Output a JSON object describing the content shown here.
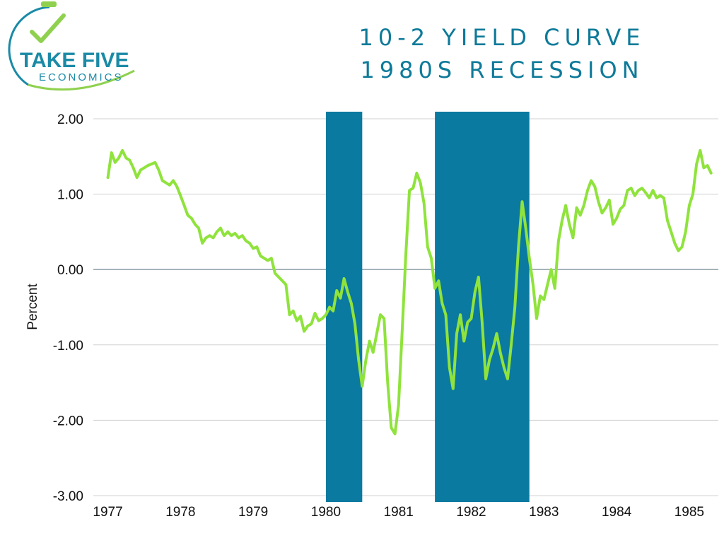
{
  "logo": {
    "line1": "TAKE FIVE",
    "line2": "ECONOMICS",
    "colors": {
      "teal": "#1a8aa6",
      "green": "#8fd14f"
    }
  },
  "title": {
    "line1": "10-2 YIELD CURVE",
    "line2": "1980S RECESSION"
  },
  "chart_data": {
    "type": "line",
    "title": "10-2 YIELD CURVE 1980S RECESSION",
    "ylabel": "Percent",
    "xlabel": "",
    "ylim": [
      -3.0,
      2.0
    ],
    "xlim": [
      1976.8,
      1985.4
    ],
    "y_ticks": [
      {
        "value": 2,
        "label": "2.00"
      },
      {
        "value": 1,
        "label": "1.00"
      },
      {
        "value": 0,
        "label": "0.00"
      },
      {
        "value": -1,
        "label": "-1.00"
      },
      {
        "value": -2,
        "label": "-2.00"
      },
      {
        "value": -3,
        "label": "-3.00"
      }
    ],
    "x_ticks": [
      {
        "value": 1977,
        "label": "1977"
      },
      {
        "value": 1978,
        "label": "1978"
      },
      {
        "value": 1979,
        "label": "1979"
      },
      {
        "value": 1980,
        "label": "1980"
      },
      {
        "value": 1981,
        "label": "1981"
      },
      {
        "value": 1982,
        "label": "1982"
      },
      {
        "value": 1983,
        "label": "1983"
      },
      {
        "value": 1984,
        "label": "1984"
      },
      {
        "value": 1985,
        "label": "1985"
      }
    ],
    "grid": true,
    "line_color": "#8fe33c",
    "recession_color": "#0a7aa0",
    "recessions": [
      {
        "start": 1980.0,
        "end": 1980.5
      },
      {
        "start": 1981.5,
        "end": 1982.8
      }
    ],
    "series": [
      {
        "points": [
          [
            1977.0,
            1.22
          ],
          [
            1977.05,
            1.55
          ],
          [
            1977.1,
            1.42
          ],
          [
            1977.15,
            1.48
          ],
          [
            1977.2,
            1.58
          ],
          [
            1977.25,
            1.48
          ],
          [
            1977.3,
            1.45
          ],
          [
            1977.35,
            1.35
          ],
          [
            1977.4,
            1.22
          ],
          [
            1977.45,
            1.32
          ],
          [
            1977.5,
            1.35
          ],
          [
            1977.55,
            1.38
          ],
          [
            1977.6,
            1.4
          ],
          [
            1977.65,
            1.42
          ],
          [
            1977.7,
            1.32
          ],
          [
            1977.75,
            1.18
          ],
          [
            1977.8,
            1.15
          ],
          [
            1977.85,
            1.12
          ],
          [
            1977.9,
            1.18
          ],
          [
            1977.95,
            1.1
          ],
          [
            1978.0,
            0.98
          ],
          [
            1978.05,
            0.85
          ],
          [
            1978.1,
            0.72
          ],
          [
            1978.15,
            0.68
          ],
          [
            1978.2,
            0.6
          ],
          [
            1978.25,
            0.55
          ],
          [
            1978.3,
            0.35
          ],
          [
            1978.35,
            0.42
          ],
          [
            1978.4,
            0.45
          ],
          [
            1978.45,
            0.42
          ],
          [
            1978.5,
            0.5
          ],
          [
            1978.55,
            0.55
          ],
          [
            1978.6,
            0.45
          ],
          [
            1978.65,
            0.5
          ],
          [
            1978.7,
            0.45
          ],
          [
            1978.75,
            0.48
          ],
          [
            1978.8,
            0.42
          ],
          [
            1978.85,
            0.45
          ],
          [
            1978.9,
            0.38
          ],
          [
            1978.95,
            0.35
          ],
          [
            1979.0,
            0.28
          ],
          [
            1979.05,
            0.3
          ],
          [
            1979.1,
            0.18
          ],
          [
            1979.15,
            0.15
          ],
          [
            1979.2,
            0.12
          ],
          [
            1979.25,
            0.15
          ],
          [
            1979.3,
            -0.05
          ],
          [
            1979.35,
            -0.1
          ],
          [
            1979.4,
            -0.15
          ],
          [
            1979.45,
            -0.2
          ],
          [
            1979.5,
            -0.6
          ],
          [
            1979.55,
            -0.55
          ],
          [
            1979.6,
            -0.68
          ],
          [
            1979.65,
            -0.62
          ],
          [
            1979.7,
            -0.82
          ],
          [
            1979.75,
            -0.75
          ],
          [
            1979.8,
            -0.72
          ],
          [
            1979.85,
            -0.58
          ],
          [
            1979.9,
            -0.68
          ],
          [
            1979.95,
            -0.65
          ],
          [
            1980.0,
            -0.6
          ],
          [
            1980.05,
            -0.5
          ],
          [
            1980.1,
            -0.55
          ],
          [
            1980.15,
            -0.28
          ],
          [
            1980.2,
            -0.38
          ],
          [
            1980.25,
            -0.12
          ],
          [
            1980.3,
            -0.3
          ],
          [
            1980.35,
            -0.45
          ],
          [
            1980.4,
            -0.72
          ],
          [
            1980.45,
            -1.2
          ],
          [
            1980.5,
            -1.55
          ],
          [
            1980.55,
            -1.2
          ],
          [
            1980.6,
            -0.95
          ],
          [
            1980.65,
            -1.1
          ],
          [
            1980.7,
            -0.85
          ],
          [
            1980.75,
            -0.6
          ],
          [
            1980.8,
            -0.65
          ],
          [
            1980.85,
            -1.5
          ],
          [
            1980.9,
            -2.1
          ],
          [
            1980.95,
            -2.18
          ],
          [
            1981.0,
            -1.8
          ],
          [
            1981.05,
            -0.8
          ],
          [
            1981.1,
            0.2
          ],
          [
            1981.15,
            1.05
          ],
          [
            1981.2,
            1.08
          ],
          [
            1981.25,
            1.28
          ],
          [
            1981.3,
            1.15
          ],
          [
            1981.35,
            0.88
          ],
          [
            1981.4,
            0.3
          ],
          [
            1981.45,
            0.15
          ],
          [
            1981.5,
            -0.25
          ],
          [
            1981.55,
            -0.15
          ],
          [
            1981.6,
            -0.45
          ],
          [
            1981.65,
            -0.6
          ],
          [
            1981.7,
            -1.3
          ],
          [
            1981.75,
            -1.58
          ],
          [
            1981.8,
            -0.85
          ],
          [
            1981.85,
            -0.6
          ],
          [
            1981.9,
            -0.95
          ],
          [
            1981.95,
            -0.7
          ],
          [
            1982.0,
            -0.65
          ],
          [
            1982.05,
            -0.3
          ],
          [
            1982.1,
            -0.1
          ],
          [
            1982.15,
            -0.7
          ],
          [
            1982.2,
            -1.45
          ],
          [
            1982.25,
            -1.2
          ],
          [
            1982.3,
            -1.05
          ],
          [
            1982.35,
            -0.85
          ],
          [
            1982.4,
            -1.1
          ],
          [
            1982.45,
            -1.3
          ],
          [
            1982.5,
            -1.45
          ],
          [
            1982.55,
            -1.0
          ],
          [
            1982.6,
            -0.5
          ],
          [
            1982.65,
            0.3
          ],
          [
            1982.7,
            0.9
          ],
          [
            1982.75,
            0.55
          ],
          [
            1982.8,
            0.15
          ],
          [
            1982.85,
            -0.2
          ],
          [
            1982.9,
            -0.65
          ],
          [
            1982.95,
            -0.35
          ],
          [
            1983.0,
            -0.4
          ],
          [
            1983.05,
            -0.2
          ],
          [
            1983.1,
            0.0
          ],
          [
            1983.15,
            -0.25
          ],
          [
            1983.2,
            0.38
          ],
          [
            1983.25,
            0.65
          ],
          [
            1983.3,
            0.85
          ],
          [
            1983.35,
            0.6
          ],
          [
            1983.4,
            0.42
          ],
          [
            1983.45,
            0.82
          ],
          [
            1983.5,
            0.72
          ],
          [
            1983.55,
            0.85
          ],
          [
            1983.6,
            1.05
          ],
          [
            1983.65,
            1.18
          ],
          [
            1983.7,
            1.1
          ],
          [
            1983.75,
            0.9
          ],
          [
            1983.8,
            0.75
          ],
          [
            1983.85,
            0.82
          ],
          [
            1983.9,
            0.92
          ],
          [
            1983.95,
            0.6
          ],
          [
            1984.0,
            0.68
          ],
          [
            1984.05,
            0.8
          ],
          [
            1984.1,
            0.85
          ],
          [
            1984.15,
            1.05
          ],
          [
            1984.2,
            1.08
          ],
          [
            1984.25,
            0.98
          ],
          [
            1984.3,
            1.05
          ],
          [
            1984.35,
            1.08
          ],
          [
            1984.4,
            1.02
          ],
          [
            1984.45,
            0.95
          ],
          [
            1984.5,
            1.05
          ],
          [
            1984.55,
            0.95
          ],
          [
            1984.6,
            0.98
          ],
          [
            1984.65,
            0.95
          ],
          [
            1984.7,
            0.65
          ],
          [
            1984.75,
            0.5
          ],
          [
            1984.8,
            0.35
          ],
          [
            1984.85,
            0.25
          ],
          [
            1984.9,
            0.3
          ],
          [
            1984.95,
            0.5
          ],
          [
            1985.0,
            0.85
          ],
          [
            1985.05,
            1.0
          ],
          [
            1985.1,
            1.4
          ],
          [
            1985.15,
            1.58
          ],
          [
            1985.2,
            1.35
          ],
          [
            1985.25,
            1.38
          ],
          [
            1985.3,
            1.28
          ]
        ]
      }
    ]
  }
}
